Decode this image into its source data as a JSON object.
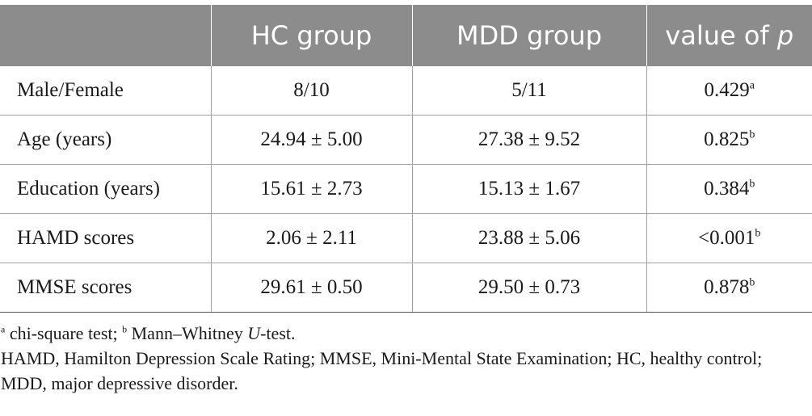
{
  "table": {
    "headers": [
      {
        "text": "",
        "italic_suffix": ""
      },
      {
        "text": "HC group",
        "italic_suffix": ""
      },
      {
        "text": "MDD group",
        "italic_suffix": ""
      },
      {
        "text": "value of ",
        "italic_suffix": "p"
      }
    ],
    "rows": [
      {
        "label": "Male/Female",
        "hc": "8/10",
        "mdd": "5/11",
        "p": "0.429",
        "sup": "a"
      },
      {
        "label": "Age (years)",
        "hc": "24.94 ± 5.00",
        "mdd": "27.38 ± 9.52",
        "p": "0.825",
        "sup": "b"
      },
      {
        "label": "Education (years)",
        "hc": "15.61 ± 2.73",
        "mdd": "15.13 ± 1.67",
        "p": "0.384",
        "sup": "b"
      },
      {
        "label": "HAMD scores",
        "hc": "2.06 ± 2.11",
        "mdd": "23.88 ± 5.06",
        "p": "<0.001",
        "sup": "b"
      },
      {
        "label": "MMSE scores",
        "hc": "29.61 ± 0.50",
        "mdd": "29.50 ± 0.73",
        "p": "0.878",
        "sup": "b"
      }
    ]
  },
  "footnotes": {
    "tests": {
      "a_mark": "a",
      "a_text": " chi-square test; ",
      "b_mark": "b",
      "b_text": " Mann–Whitney ",
      "u_italic": "U",
      "b_tail": "-test."
    },
    "abbreviations": "HAMD, Hamilton Depression Scale Rating; MMSE, Mini-Mental State Examination; HC, healthy control; MDD, major depressive disorder."
  }
}
